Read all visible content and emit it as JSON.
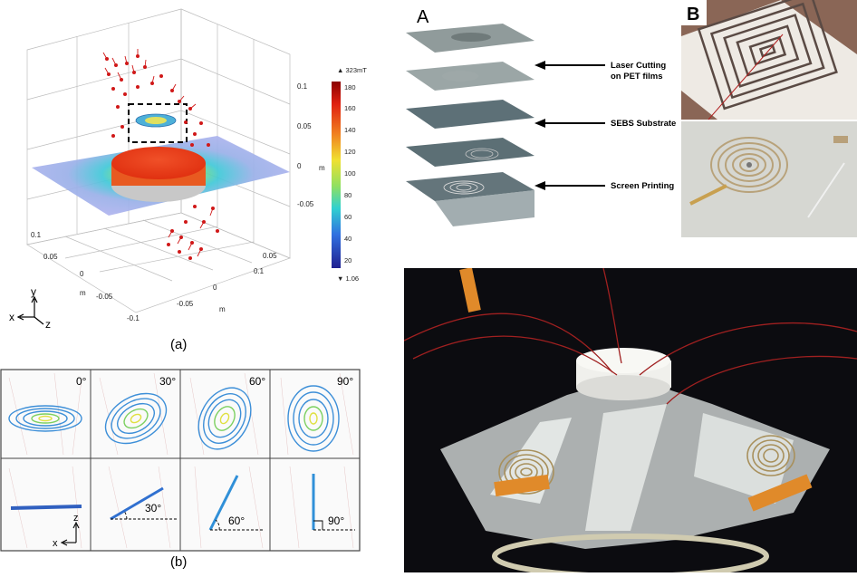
{
  "panel_a": {
    "caption": "(a)",
    "colorbar_max_marker": "▲ 323mT",
    "colorbar_min_marker": "▼ 1.06",
    "colorbar_ticks": [
      "180",
      "160",
      "140",
      "120",
      "100",
      "80",
      "60",
      "40",
      "20"
    ],
    "z_ticks": [
      "0.1",
      "0.05",
      "0",
      "-0.05"
    ],
    "z_unit": "m",
    "x_ticks": [
      "0.1",
      "0.05",
      "0",
      "-0.05",
      "-0.1"
    ],
    "x_unit": "m",
    "y_ticks": [
      "0.05",
      "0",
      "-0.05",
      "0.1"
    ],
    "y_unit": "m",
    "axis_x": "x",
    "axis_y": "y",
    "axis_z": "z"
  },
  "panel_b": {
    "caption": "(b)",
    "angles_top": [
      "0°",
      "30°",
      "60°",
      "90°"
    ],
    "angles_bottom": [
      "30°",
      "60°",
      "90°"
    ],
    "axis_z": "z",
    "axis_x": "x"
  },
  "panel_A": {
    "letter": "A",
    "annotations": [
      "Laser Cutting\non PET films",
      "SEBS Substrate",
      "Screen Printing"
    ]
  },
  "panel_B": {
    "letter": "B"
  },
  "colors": {
    "hot": "#e8401c",
    "cool": "#8f9bd8",
    "arrow": "#d01818",
    "coil": "#3d8fd8"
  }
}
